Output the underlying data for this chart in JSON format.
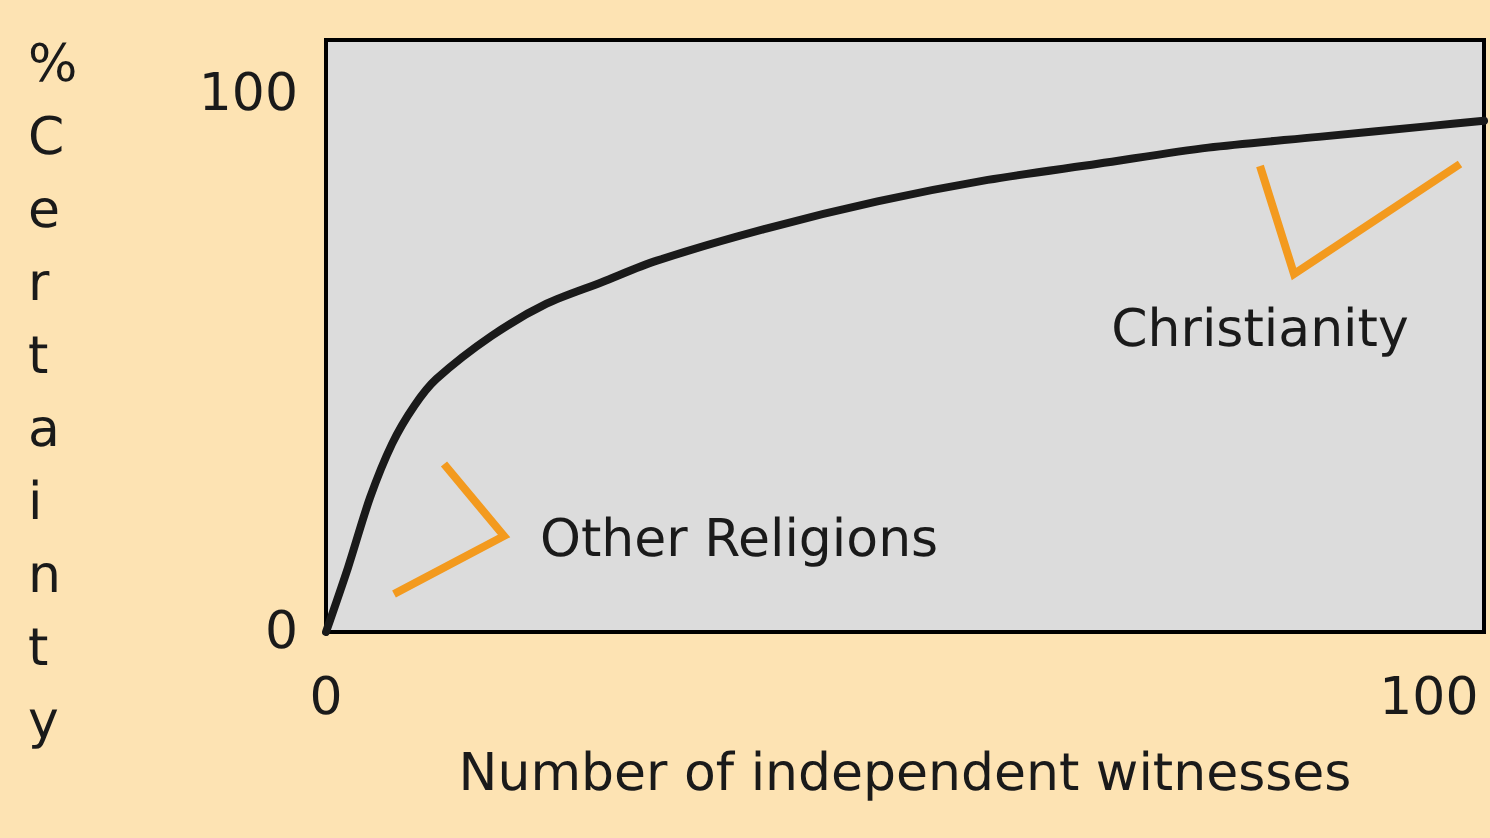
{
  "chart_data": {
    "type": "line",
    "xlabel": "Number of independent witnesses",
    "ylabel": "% Certainty",
    "x": [
      0,
      2,
      4,
      6,
      8,
      10,
      15,
      20,
      25,
      30,
      40,
      50,
      60,
      70,
      80,
      90,
      100,
      105
    ],
    "series": [
      {
        "color": "#1a1a1a",
        "values": [
          0,
          12,
          25,
          35,
          42,
          47,
          55,
          61,
          65,
          69,
          75,
          80,
          84,
          87,
          90,
          92,
          94,
          95
        ]
      }
    ],
    "xlim": [
      0,
      105
    ],
    "ylim": [
      0,
      110
    ],
    "xticks": [
      0,
      100
    ],
    "yticks": [
      0,
      100
    ],
    "annotations": [
      "Other Religions",
      "Christianity"
    ],
    "grid": false,
    "marker": "none",
    "line_style": "solid"
  }
}
